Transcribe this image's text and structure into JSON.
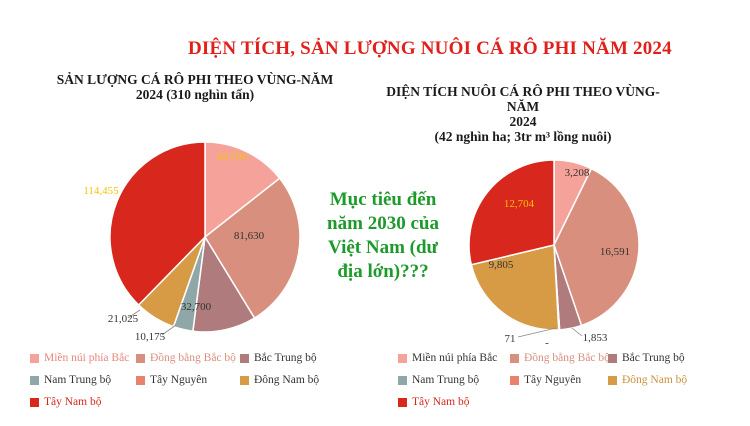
{
  "main_title": "DIỆN TÍCH, SẢN LƯỢNG NUÔI CÁ RÔ PHI NĂM 2024",
  "goal_text": [
    "Mục tiêu đến",
    "năm 2030 của",
    "Việt Nam (dư",
    "địa lớn)???"
  ],
  "colors": {
    "Miền núi phía Bắc": "#f4a29a",
    "Đồng bằng Bắc bộ": "#d88f7d",
    "Bắc Trung bộ": "#b07b7c",
    "Nam Trung bộ": "#8fa7a7",
    "Tây Nguyên": "#e8826c",
    "Đông Nam bộ": "#d79a45",
    "Tây Nam bộ": "#d8281d"
  },
  "chart_data": [
    {
      "type": "pie",
      "title_lines": [
        "SẢN LƯỢNG CÁ RÔ PHI THEO VÙNG-NĂM",
        "2024 (310 nghìn tấn)"
      ],
      "categories": [
        "Miền núi phía Bắc",
        "Đồng bằng Bắc bộ",
        "Bắc Trung bộ",
        "Nam Trung bộ",
        "Tây Nguyên",
        "Đông Nam bộ",
        "Tây Nam bộ"
      ],
      "values": [
        43705,
        81630,
        32700,
        10175,
        0,
        21025,
        114455
      ],
      "labels": [
        "43,705",
        "81,630",
        "32,700",
        "10,175",
        "",
        "21,025",
        "114,455"
      ],
      "legend_entries": [
        "Miền núi phía Bắc",
        "Đồng bằng Bắc bộ",
        "Bắc Trung bộ",
        "Nam Trung bộ",
        "Tây Nguyên",
        "Đông Nam bộ",
        "Tây Nam bộ"
      ]
    },
    {
      "type": "pie",
      "title_lines": [
        "DIỆN TÍCH NUÔI CÁ RÔ PHI THEO VÙNG-NĂM",
        "2024",
        "(42 nghìn ha; 3tr m³ lồng nuôi)"
      ],
      "categories": [
        "Miền núi phía Bắc",
        "Đồng bằng Bắc bộ",
        "Bắc Trung bộ",
        "Nam Trung bộ",
        "Tây Nguyên",
        "Đông Nam bộ",
        "Tây Nam bộ"
      ],
      "values": [
        3208,
        16591,
        1853,
        0,
        71,
        9805,
        12704
      ],
      "labels": [
        "3,208",
        "16,591",
        "1,853",
        "-",
        "71",
        "9,805",
        "12,704"
      ],
      "legend_entries": [
        "Miền núi phía Bắc",
        "Đồng bằng Bắc bộ",
        "Bắc Trung bộ",
        "Nam Trung bộ",
        "Tây Nguyên",
        "Đông Nam bộ",
        "Tây Nam bộ"
      ]
    }
  ]
}
